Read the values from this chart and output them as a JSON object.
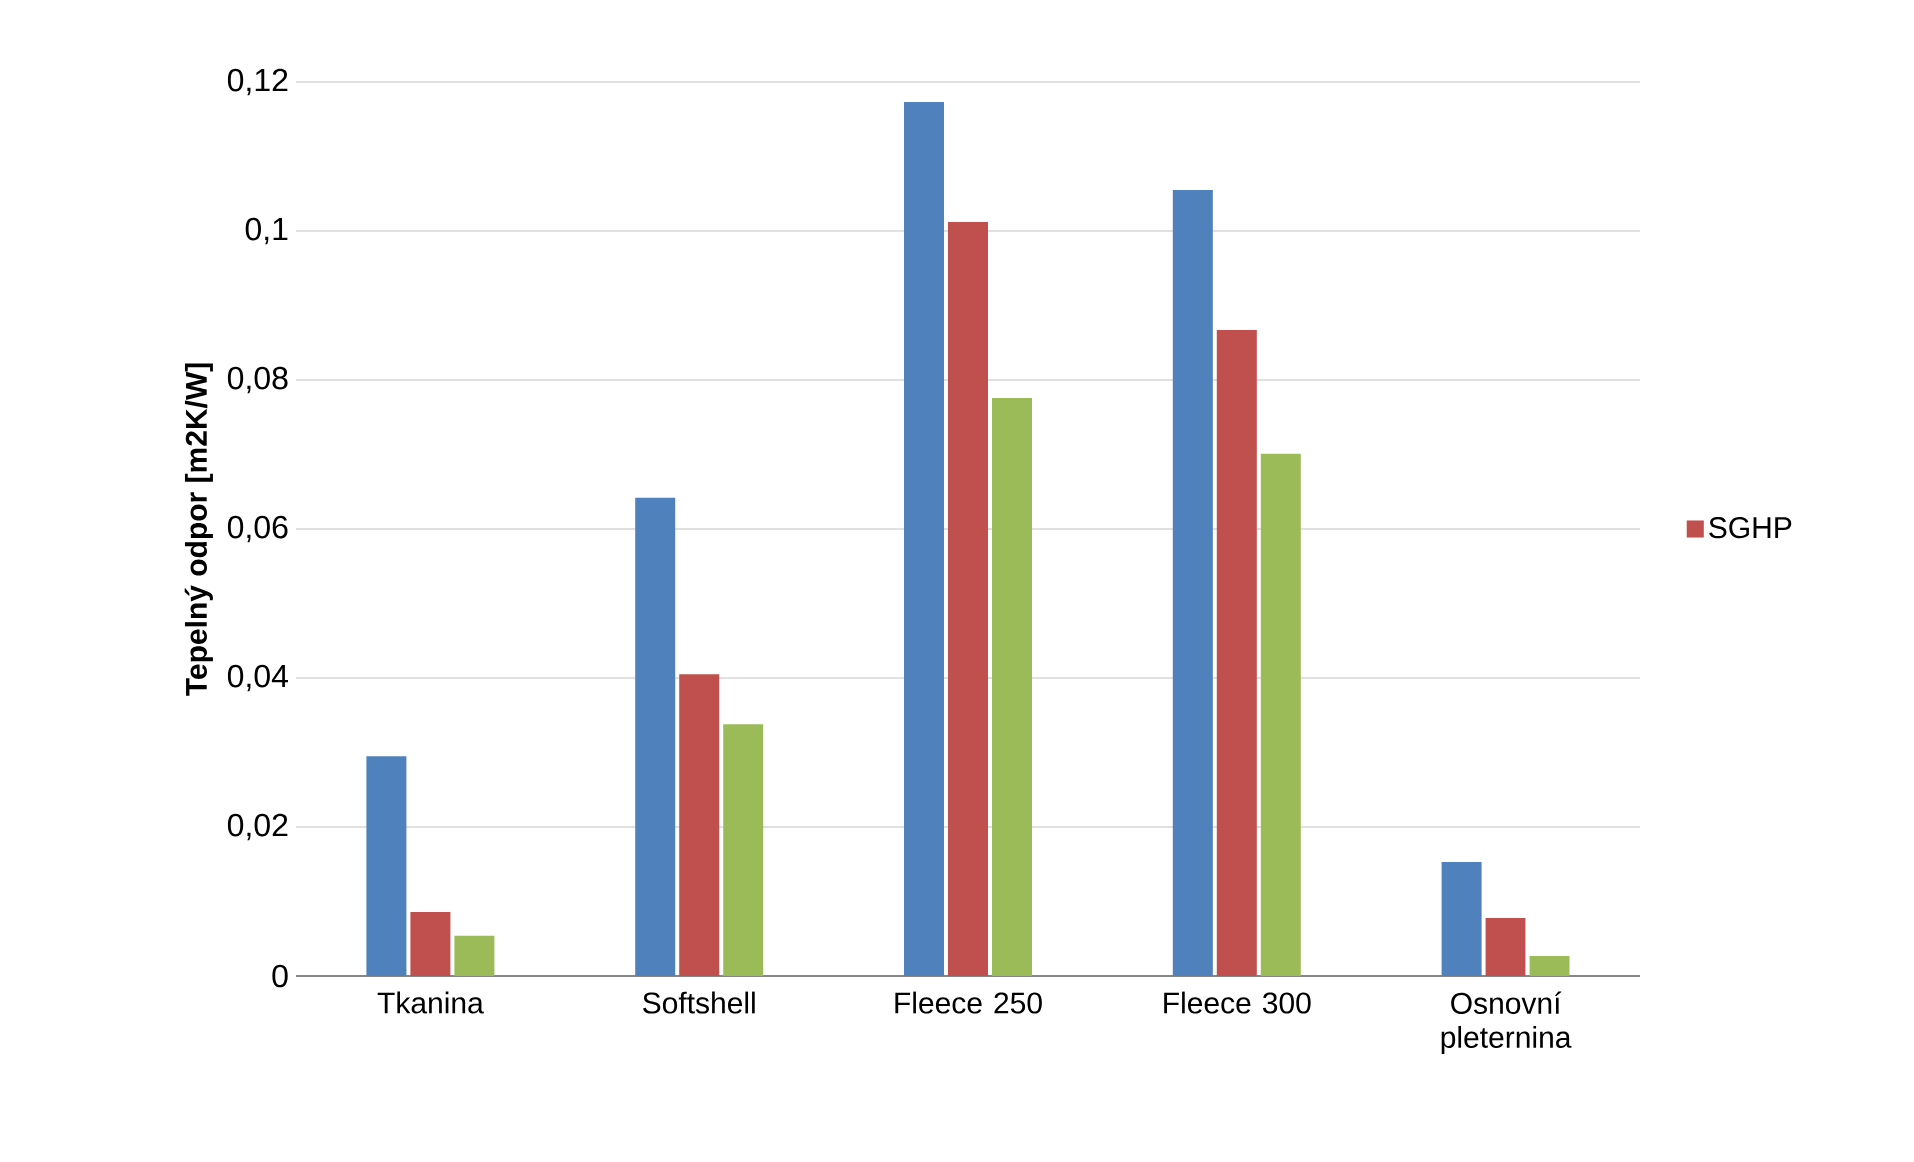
{
  "chart_data": {
    "type": "bar",
    "ylabel": "Tepelný odpor [m2K/W]",
    "categories": [
      "Tkanina",
      "Softshell",
      "Fleece 250",
      "Fleece 300",
      "Osnovní pleternina"
    ],
    "series": [
      {
        "color": "#4f81bd",
        "values": [
          0.0295,
          0.0642,
          0.1173,
          0.1055,
          0.0153
        ]
      },
      {
        "name": "SGHP",
        "color": "#c0504d",
        "values": [
          0.0086,
          0.0405,
          0.1012,
          0.0867,
          0.0078
        ]
      },
      {
        "color": "#9bbb59",
        "values": [
          0.0054,
          0.0338,
          0.0776,
          0.0701,
          0.0027
        ]
      }
    ],
    "ylim": [
      0,
      0.12
    ],
    "yticks": [
      0,
      {
        "value": 0.02,
        "label": "0,02"
      },
      {
        "value": 0.04,
        "label": "0,04"
      },
      {
        "value": 0.06,
        "label": "0,06"
      },
      {
        "value": 0.08,
        "label": "0,08"
      },
      {
        "value": 0.1,
        "label": "0,1"
      },
      {
        "value": 0.12,
        "label": "0,12"
      }
    ],
    "grid": "y",
    "legend": "right"
  }
}
